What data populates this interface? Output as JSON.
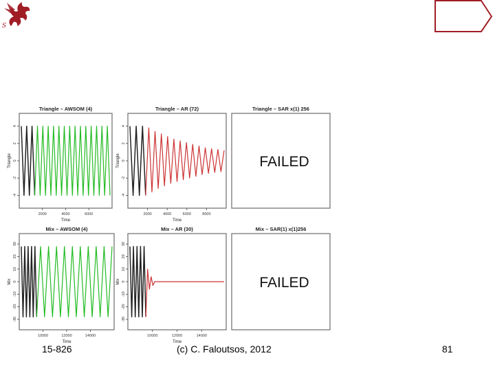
{
  "footer": {
    "course": "15-826",
    "copyright": "(c) C. Faloutsos, 2012",
    "page": "81"
  },
  "colors": {
    "accent": "#a01d26",
    "observed": "#222222",
    "awsom": "#22bb22",
    "ar": "#cc3333",
    "frame": "#777777"
  },
  "chart_data": [
    {
      "type": "line",
      "title": "Triangle – AWSOM (4)",
      "xlabel": "Time",
      "ylabel": "Triangle",
      "xticks": [
        "2000",
        "4000",
        "6000"
      ],
      "yticks": [
        "4",
        "2",
        "0",
        "-2",
        "-4"
      ],
      "ylim": [
        -5,
        5
      ],
      "series": [
        {
          "role": "observed",
          "points": [
            [
              0,
              4
            ],
            [
              0.7,
              -4
            ],
            [
              1.4,
              4
            ],
            [
              2.1,
              -4
            ],
            [
              2.8,
              4
            ],
            [
              3.5,
              -4
            ]
          ]
        },
        {
          "role": "forecast",
          "points": [
            [
              3.5,
              -4
            ],
            [
              4.2,
              4
            ],
            [
              4.9,
              -4
            ],
            [
              5.6,
              4
            ],
            [
              6.3,
              -4
            ],
            [
              7,
              4
            ],
            [
              7.7,
              -4
            ],
            [
              8.4,
              4
            ],
            [
              9.1,
              -4
            ],
            [
              9.8,
              4
            ],
            [
              10.5,
              -4
            ],
            [
              11.2,
              4
            ],
            [
              11.9,
              -4
            ],
            [
              12.6,
              4
            ],
            [
              13.3,
              -4
            ],
            [
              14,
              4
            ],
            [
              14.7,
              -4
            ],
            [
              15.4,
              4
            ],
            [
              16.1,
              -4
            ],
            [
              16.8,
              4
            ],
            [
              17.5,
              -4
            ],
            [
              18.2,
              4
            ],
            [
              18.9,
              -4
            ],
            [
              19.6,
              4
            ],
            [
              20.3,
              -4
            ],
            [
              21,
              4
            ],
            [
              21.7,
              -4
            ],
            [
              22.4,
              4
            ],
            [
              23.1,
              -4
            ]
          ]
        }
      ]
    },
    {
      "type": "line",
      "title": "Triangle – AR (72)",
      "xlabel": "Time",
      "ylabel": "Triangle",
      "xticks": [
        "2000",
        "4000",
        "6000",
        "8000"
      ],
      "yticks": [
        "4",
        "2",
        "0",
        "-2",
        "-4"
      ],
      "ylim": [
        -5,
        5
      ],
      "series": [
        {
          "role": "observed",
          "points": [
            [
              0,
              4
            ],
            [
              0.7,
              -4
            ],
            [
              1.4,
              4
            ],
            [
              2.1,
              -4
            ],
            [
              2.8,
              4
            ],
            [
              3.5,
              -4
            ]
          ]
        },
        {
          "role": "forecast",
          "points": [
            [
              3.5,
              -4
            ],
            [
              4.2,
              3.8
            ],
            [
              4.9,
              -3.6
            ],
            [
              5.6,
              3.4
            ],
            [
              6.3,
              -3.2
            ],
            [
              7,
              3.1
            ],
            [
              7.7,
              -2.9
            ],
            [
              8.4,
              2.8
            ],
            [
              9.1,
              -2.6
            ],
            [
              9.8,
              2.5
            ],
            [
              10.5,
              -2.4
            ],
            [
              11.2,
              2.3
            ],
            [
              11.9,
              -2.2
            ],
            [
              12.6,
              2.1
            ],
            [
              13.3,
              -2
            ],
            [
              14,
              1.9
            ],
            [
              14.7,
              -1.8
            ],
            [
              15.4,
              1.7
            ],
            [
              16.1,
              -1.6
            ],
            [
              16.8,
              1.5
            ],
            [
              17.5,
              -1.45
            ],
            [
              18.2,
              1.4
            ],
            [
              18.9,
              -1.35
            ],
            [
              19.6,
              1.3
            ],
            [
              20.3,
              -1.25
            ],
            [
              21,
              1.2
            ]
          ]
        }
      ]
    },
    {
      "type": "line",
      "title": "Triangle – SAR x(1) 256",
      "annotation": "FAILED",
      "series": []
    },
    {
      "type": "line",
      "title": "Mix – AWSOM (4)",
      "xlabel": "Time",
      "ylabel": "Mix",
      "xticks": [
        "10000",
        "12000",
        "14000"
      ],
      "yticks": [
        "30",
        "20",
        "10",
        "0",
        "-10",
        "-20",
        "-30"
      ],
      "ylim": [
        -35,
        35
      ],
      "series": [
        {
          "role": "observed",
          "points": [
            [
              0,
              28
            ],
            [
              0.3,
              -28
            ],
            [
              0.6,
              28
            ],
            [
              0.9,
              -28
            ],
            [
              1.2,
              28
            ],
            [
              1.5,
              -28
            ],
            [
              1.8,
              28
            ],
            [
              2.1,
              -28
            ],
            [
              2.4,
              28
            ],
            [
              2.7,
              -28
            ]
          ]
        },
        {
          "role": "forecast",
          "points": [
            [
              2.7,
              -28
            ],
            [
              3.4,
              28
            ],
            [
              4.1,
              -28
            ],
            [
              4.8,
              28
            ],
            [
              5.5,
              -28
            ],
            [
              6.2,
              28
            ],
            [
              6.9,
              -28
            ],
            [
              7.6,
              28
            ],
            [
              8.3,
              -28
            ],
            [
              9,
              28
            ],
            [
              9.7,
              -28
            ],
            [
              10.4,
              28
            ],
            [
              11.1,
              -28
            ],
            [
              11.8,
              28
            ],
            [
              12.5,
              -28
            ],
            [
              13.2,
              28
            ],
            [
              13.9,
              -28
            ],
            [
              14.6,
              28
            ],
            [
              15.3,
              -28
            ],
            [
              16,
              28
            ]
          ]
        }
      ]
    },
    {
      "type": "line",
      "title": "Mix – AR (30)",
      "xlabel": "Time",
      "ylabel": "Mix",
      "xticks": [
        "10000",
        "12000",
        "14000"
      ],
      "yticks": [
        "30",
        "20",
        "10",
        "0",
        "-10",
        "-20",
        "-30"
      ],
      "ylim": [
        -35,
        35
      ],
      "series": [
        {
          "role": "observed",
          "points": [
            [
              0,
              28
            ],
            [
              0.3,
              -28
            ],
            [
              0.6,
              28
            ],
            [
              0.9,
              -28
            ],
            [
              1.2,
              28
            ],
            [
              1.5,
              -28
            ],
            [
              1.8,
              28
            ],
            [
              2.1,
              -28
            ],
            [
              2.4,
              28
            ],
            [
              2.7,
              -28
            ]
          ]
        },
        {
          "role": "forecast",
          "points": [
            [
              2.7,
              -28
            ],
            [
              3.0,
              10
            ],
            [
              3.3,
              -6
            ],
            [
              3.6,
              4
            ],
            [
              3.9,
              -3
            ],
            [
              4.2,
              0
            ],
            [
              16,
              0
            ]
          ]
        }
      ]
    },
    {
      "type": "line",
      "title": "Mix – SAR(1) x(1)256",
      "annotation": "FAILED",
      "series": []
    }
  ]
}
